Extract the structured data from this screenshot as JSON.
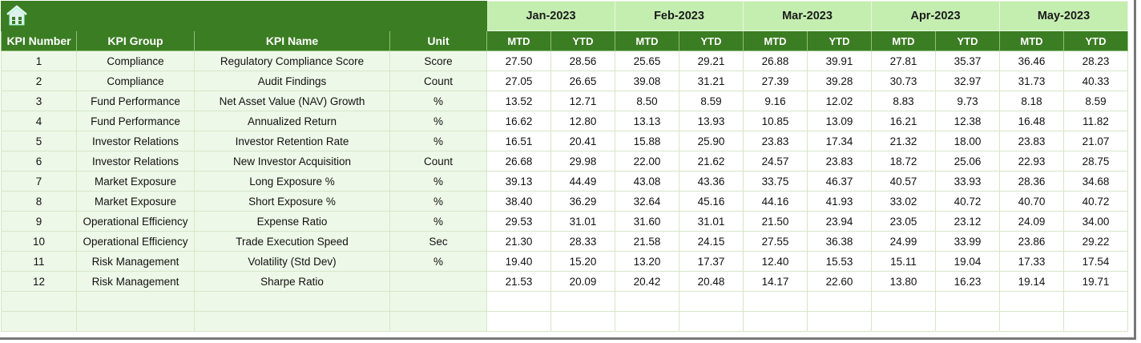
{
  "home_icon": "home-icon",
  "colors": {
    "header_dark": "#3b7d23",
    "month_header": "#c4eeb0",
    "left_bg": "#eef8e8"
  },
  "months": [
    "Jan-2023",
    "Feb-2023",
    "Mar-2023",
    "Apr-2023",
    "May-2023"
  ],
  "columns": {
    "number": "KPI Number",
    "group": "KPI Group",
    "name": "KPI Name",
    "unit": "Unit",
    "mtd": "MTD",
    "ytd": "YTD"
  },
  "rows": [
    [
      "1",
      "Compliance",
      "Regulatory Compliance Score",
      "Score",
      "27.50",
      "28.56",
      "25.65",
      "29.21",
      "26.88",
      "39.91",
      "27.81",
      "35.37",
      "36.46",
      "28.23"
    ],
    [
      "2",
      "Compliance",
      "Audit Findings",
      "Count",
      "27.05",
      "26.65",
      "39.08",
      "31.21",
      "27.39",
      "39.28",
      "30.73",
      "32.97",
      "31.73",
      "40.33"
    ],
    [
      "3",
      "Fund Performance",
      "Net Asset Value (NAV) Growth",
      "%",
      "13.52",
      "12.71",
      "8.50",
      "8.59",
      "9.16",
      "12.02",
      "8.83",
      "9.73",
      "8.18",
      "8.59"
    ],
    [
      "4",
      "Fund Performance",
      "Annualized Return",
      "%",
      "16.62",
      "12.80",
      "13.13",
      "13.93",
      "10.85",
      "13.09",
      "16.21",
      "12.38",
      "16.48",
      "11.82"
    ],
    [
      "5",
      "Investor Relations",
      "Investor Retention Rate",
      "%",
      "16.51",
      "20.41",
      "15.88",
      "25.90",
      "23.83",
      "17.34",
      "21.32",
      "18.00",
      "23.83",
      "21.07"
    ],
    [
      "6",
      "Investor Relations",
      "New Investor Acquisition",
      "Count",
      "26.68",
      "29.98",
      "22.00",
      "21.62",
      "24.57",
      "23.83",
      "18.72",
      "25.06",
      "22.93",
      "28.75"
    ],
    [
      "7",
      "Market Exposure",
      "Long Exposure %",
      "%",
      "39.13",
      "44.49",
      "43.08",
      "43.36",
      "33.75",
      "46.37",
      "40.57",
      "33.93",
      "28.36",
      "34.68"
    ],
    [
      "8",
      "Market Exposure",
      "Short Exposure %",
      "%",
      "38.40",
      "36.29",
      "32.64",
      "45.16",
      "44.16",
      "41.93",
      "33.02",
      "40.72",
      "40.70",
      "40.72"
    ],
    [
      "9",
      "Operational Efficiency",
      "Expense Ratio",
      "%",
      "29.53",
      "31.01",
      "31.60",
      "31.01",
      "21.50",
      "23.94",
      "23.05",
      "23.12",
      "24.09",
      "34.00"
    ],
    [
      "10",
      "Operational Efficiency",
      "Trade Execution Speed",
      "Sec",
      "21.30",
      "28.33",
      "21.58",
      "24.15",
      "27.55",
      "36.38",
      "24.99",
      "33.99",
      "23.86",
      "29.22"
    ],
    [
      "11",
      "Risk Management",
      "Volatility (Std Dev)",
      "%",
      "19.40",
      "15.20",
      "13.20",
      "17.37",
      "12.40",
      "15.53",
      "15.11",
      "19.04",
      "17.33",
      "17.54"
    ],
    [
      "12",
      "Risk Management",
      "Sharpe Ratio",
      "",
      "21.53",
      "20.09",
      "20.42",
      "20.48",
      "14.17",
      "22.60",
      "13.80",
      "16.23",
      "19.14",
      "19.71"
    ]
  ]
}
